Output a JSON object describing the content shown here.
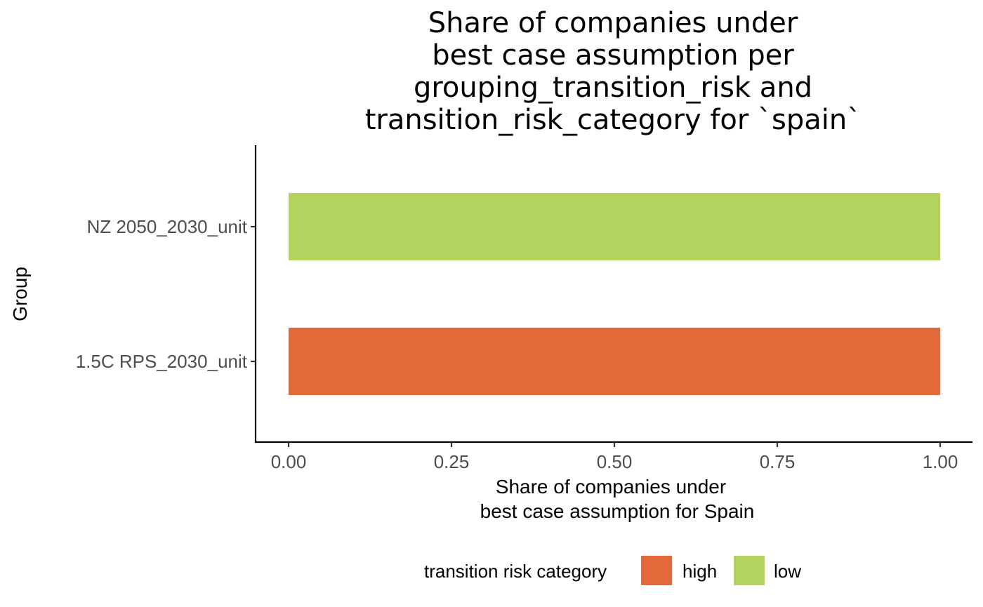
{
  "chart_data": {
    "type": "bar",
    "orientation": "horizontal",
    "title_lines": [
      "Share of companies under",
      "best case assumption per",
      "grouping_transition_risk and",
      "transition_risk_category for `spain`"
    ],
    "categories": [
      "NZ 2050_2030_unit",
      "1.5C RPS_2030_unit"
    ],
    "series": [
      {
        "category": "NZ 2050_2030_unit",
        "group": "low",
        "value": 1.0
      },
      {
        "category": "1.5C RPS_2030_unit",
        "group": "high",
        "value": 1.0
      }
    ],
    "xlabel_lines": [
      "Share of companies under",
      "best case assumption for Spain"
    ],
    "ylabel": "Group",
    "xlim": [
      0,
      1
    ],
    "xticks": [
      "0.00",
      "0.25",
      "0.50",
      "0.75",
      "1.00"
    ],
    "xtick_values": [
      0,
      0.25,
      0.5,
      0.75,
      1.0
    ],
    "grid": false,
    "legend": {
      "title": "transition risk category",
      "placement": "bottom",
      "items": [
        {
          "label": "high",
          "color": "#E3693B"
        },
        {
          "label": "low",
          "color": "#B3D35E"
        }
      ]
    },
    "colors": {
      "high": "#E3693B",
      "low": "#B3D35E"
    }
  }
}
